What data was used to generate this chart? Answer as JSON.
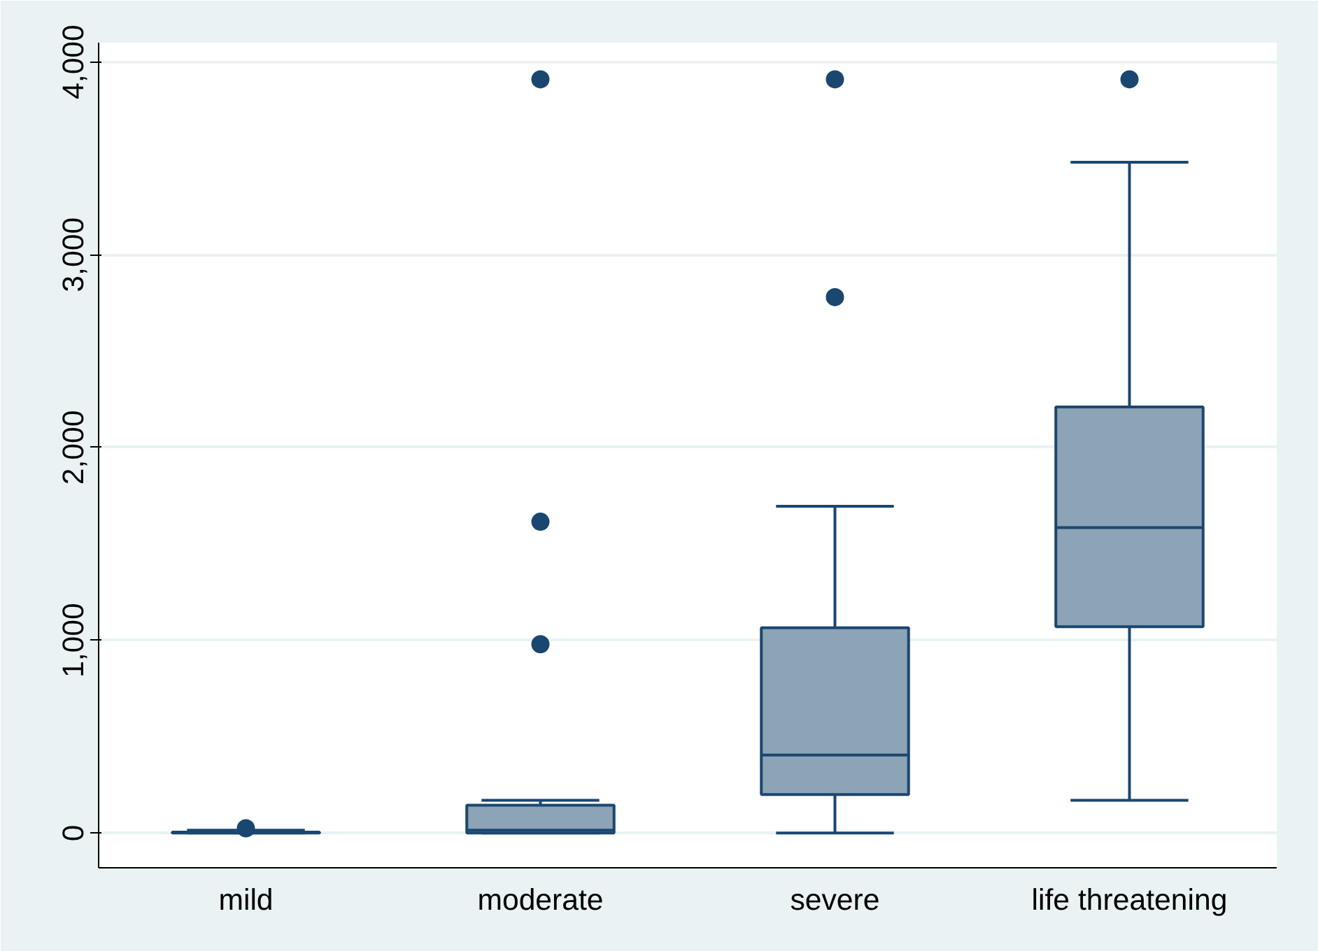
{
  "chart_data": {
    "type": "box",
    "categories": [
      "mild",
      "moderate",
      "severe",
      "life threatening"
    ],
    "boxes": [
      {
        "low": 0,
        "q1": 0,
        "median": 2,
        "q3": 5,
        "high": 15,
        "outliers": [
          25
        ]
      },
      {
        "low": 0,
        "q1": 0,
        "median": 15,
        "q3": 145,
        "high": 170,
        "outliers": [
          980,
          1615,
          3910
        ]
      },
      {
        "low": 0,
        "q1": 200,
        "median": 405,
        "q3": 1065,
        "high": 1695,
        "outliers": [
          2780,
          3910
        ]
      },
      {
        "low": 170,
        "q1": 1070,
        "median": 1585,
        "q3": 2210,
        "high": 3480,
        "outliers": [
          3910
        ]
      }
    ],
    "color": "#8da3b6",
    "ylim": [
      -180,
      4100
    ],
    "yticks": [
      {
        "value": 0,
        "label": "0"
      },
      {
        "value": 1000,
        "label": "1,000"
      },
      {
        "value": 2000,
        "label": "2,000"
      },
      {
        "value": 3000,
        "label": "3,000"
      },
      {
        "value": 4000,
        "label": "4,000"
      }
    ],
    "grid": "y"
  }
}
